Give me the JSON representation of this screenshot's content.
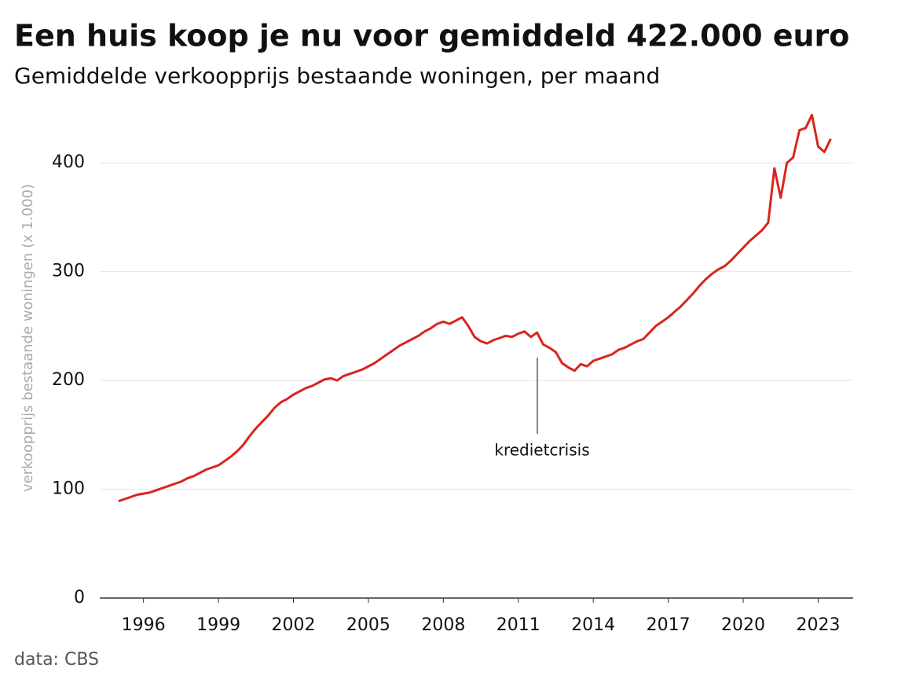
{
  "chart_data": {
    "type": "line",
    "title": "Een huis koop je nu voor gemiddeld 422.000 euro",
    "subtitle": "Gemiddelde verkoopprijs bestaande woningen, per maand",
    "y_label": "verkoopprijs bestaande woningen (x 1.000)",
    "source": "data: CBS",
    "annotation": "kredietcrisis",
    "x": [
      1995.0,
      1995.25,
      1995.5,
      1995.75,
      1996.0,
      1996.25,
      1996.5,
      1996.75,
      1997.0,
      1997.25,
      1997.5,
      1997.75,
      1998.0,
      1998.25,
      1998.5,
      1998.75,
      1999.0,
      1999.25,
      1999.5,
      1999.75,
      2000.0,
      2000.25,
      2000.5,
      2000.75,
      2001.0,
      2001.25,
      2001.5,
      2001.75,
      2002.0,
      2002.25,
      2002.5,
      2002.75,
      2003.0,
      2003.25,
      2003.5,
      2003.75,
      2004.0,
      2004.25,
      2004.5,
      2004.75,
      2005.0,
      2005.25,
      2005.5,
      2005.75,
      2006.0,
      2006.25,
      2006.5,
      2006.75,
      2007.0,
      2007.25,
      2007.5,
      2007.75,
      2008.0,
      2008.25,
      2008.5,
      2008.75,
      2009.0,
      2009.25,
      2009.5,
      2009.75,
      2010.0,
      2010.25,
      2010.5,
      2010.75,
      2011.0,
      2011.25,
      2011.5,
      2011.75,
      2012.0,
      2012.25,
      2012.5,
      2012.75,
      2013.0,
      2013.25,
      2013.5,
      2013.75,
      2014.0,
      2014.25,
      2014.5,
      2014.75,
      2015.0,
      2015.25,
      2015.5,
      2015.75,
      2016.0,
      2016.25,
      2016.5,
      2016.75,
      2017.0,
      2017.25,
      2017.5,
      2017.75,
      2018.0,
      2018.25,
      2018.5,
      2018.75,
      2019.0,
      2019.25,
      2019.5,
      2019.75,
      2020.0,
      2020.25,
      2020.5,
      2020.75,
      2021.0,
      2021.25,
      2021.5,
      2021.75,
      2022.0,
      2022.25,
      2022.5,
      2022.75,
      2023.0,
      2023.25,
      2023.5
    ],
    "series": [
      {
        "color": "#d7261e",
        "values": [
          89,
          91,
          93,
          95,
          96,
          97,
          99,
          101,
          103,
          105,
          107,
          110,
          112,
          115,
          118,
          120,
          122,
          126,
          130,
          135,
          141,
          149,
          156,
          162,
          168,
          175,
          180,
          183,
          187,
          190,
          193,
          195,
          198,
          201,
          202,
          200,
          204,
          206,
          208,
          210,
          213,
          216,
          220,
          224,
          228,
          232,
          235,
          238,
          241,
          245,
          248,
          252,
          254,
          252,
          255,
          258,
          250,
          240,
          236,
          234,
          237,
          239,
          241,
          240,
          243,
          245,
          240,
          244,
          233,
          230,
          226,
          216,
          212,
          209,
          215,
          213,
          218,
          220,
          222,
          224,
          228,
          230,
          233,
          236,
          238,
          244,
          250,
          254,
          258,
          263,
          268,
          274,
          280,
          287,
          293,
          298,
          302,
          305,
          310,
          316,
          322,
          328,
          333,
          338,
          345,
          395,
          368,
          400,
          405,
          430,
          432,
          444,
          415,
          410,
          422
        ]
      }
    ],
    "xlim": [
      1994.25,
      2024.4
    ],
    "xticks": [
      1996,
      1999,
      2002,
      2005,
      2008,
      2011,
      2014,
      2017,
      2020,
      2023
    ],
    "ylim": [
      0,
      450
    ],
    "yticks": [
      0,
      100,
      200,
      300,
      400
    ],
    "grid": true
  }
}
